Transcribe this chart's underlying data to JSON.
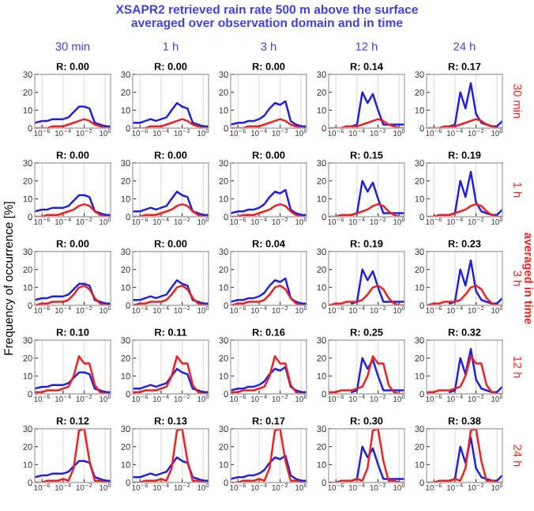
{
  "chart_data": [
    {
      "type": "line",
      "title": "R: 0.00",
      "annotations": [
        "XSAPR2 retrieved rain rate 500 m above the surface\naveraged over observation domain and in time",
        "30 min"
      ],
      "x": [
        2e-07,
        1e-06,
        3.2e-06,
        1e-05,
        3.2e-05,
        0.0001,
        0.00032,
        0.001,
        0.0032,
        0.01,
        0.032,
        0.1,
        0.32,
        1,
        3.2
      ],
      "xlim": [
        2e-07,
        3.2
      ],
      "xticks": [
        {
          "value": 1e-06,
          "label": "10$^{−6}$"
        },
        {
          "value": 0.0001,
          "label": "10$^{−4}$"
        },
        {
          "value": 0.01,
          "label": "10$^{−2}$"
        },
        {
          "value": 1,
          "label": "10$^{0}$"
        }
      ],
      "ylim": [
        0,
        30
      ],
      "yticks": [
        0,
        10,
        20,
        30
      ],
      "log": "x",
      "grid": "x",
      "series": [
        {
          "color": "#2020e0",
          "values": [
            3,
            4,
            4,
            5,
            5,
            5,
            6,
            9,
            12,
            12,
            11,
            3,
            2,
            1,
            1
          ]
        },
        {
          "color": "#ee2020",
          "values": [
            0,
            0,
            0,
            1,
            1,
            1,
            2,
            3,
            4,
            5,
            4,
            2,
            1,
            0,
            0
          ]
        }
      ]
    },
    {
      "type": "line",
      "title": "R: 0.00",
      "annotations": [
        "1 h"
      ],
      "x": [
        2e-07,
        1e-06,
        3.2e-06,
        1e-05,
        3.2e-05,
        0.0001,
        0.00032,
        0.001,
        0.0032,
        0.01,
        0.032,
        0.1,
        0.32,
        1,
        3.2
      ],
      "xlim": [
        2e-07,
        3.2
      ],
      "xticks": [
        {
          "value": 1e-06,
          "label": "10$^{−6}$"
        },
        {
          "value": 0.0001,
          "label": "10$^{−4}$"
        },
        {
          "value": 0.01,
          "label": "10$^{−2}$"
        },
        {
          "value": 1,
          "label": "10$^{0}$"
        }
      ],
      "ylim": [
        0,
        30
      ],
      "yticks": [
        0,
        10,
        20,
        30
      ],
      "log": "x",
      "grid": "x",
      "series": [
        {
          "color": "#2020e0",
          "values": [
            3,
            3,
            4,
            5,
            4,
            5,
            6,
            10,
            14,
            12,
            11,
            3,
            2,
            1,
            1
          ]
        },
        {
          "color": "#ee2020",
          "values": [
            0,
            0,
            0,
            1,
            1,
            1,
            2,
            3,
            4,
            5,
            4,
            2,
            1,
            0,
            0
          ]
        }
      ]
    },
    {
      "type": "line",
      "title": "R: 0.00",
      "annotations": [
        "3 h"
      ],
      "x": [
        2e-07,
        1e-06,
        3.2e-06,
        1e-05,
        3.2e-05,
        0.0001,
        0.00032,
        0.001,
        0.0032,
        0.01,
        0.032,
        0.1,
        0.32,
        1,
        3.2
      ],
      "xlim": [
        2e-07,
        3.2
      ],
      "xticks": [
        {
          "value": 1e-06,
          "label": "10$^{−6}$"
        },
        {
          "value": 0.0001,
          "label": "10$^{−4}$"
        },
        {
          "value": 0.01,
          "label": "10$^{−2}$"
        },
        {
          "value": 1,
          "label": "10$^{0}$"
        }
      ],
      "ylim": [
        0,
        30
      ],
      "yticks": [
        0,
        10,
        20,
        30
      ],
      "log": "x",
      "grid": "x",
      "series": [
        {
          "color": "#2020e0",
          "values": [
            2,
            3,
            3,
            4,
            4,
            5,
            7,
            11,
            14,
            13,
            15,
            4,
            2,
            1,
            1
          ]
        },
        {
          "color": "#ee2020",
          "values": [
            0,
            0,
            0,
            1,
            1,
            1,
            2,
            3,
            4,
            5,
            4,
            2,
            1,
            0,
            0
          ]
        }
      ]
    },
    {
      "type": "line",
      "title": "R: 0.14",
      "annotations": [
        "12 h"
      ],
      "x": [
        2e-07,
        1e-06,
        3.2e-06,
        1e-05,
        3.2e-05,
        0.0001,
        0.00032,
        0.001,
        0.0032,
        0.01,
        0.032,
        0.1,
        0.32,
        1,
        3.2
      ],
      "xlim": [
        2e-07,
        3.2
      ],
      "xticks": [
        {
          "value": 1e-06,
          "label": "10$^{−6}$"
        },
        {
          "value": 0.0001,
          "label": "10$^{−4}$"
        },
        {
          "value": 0.01,
          "label": "10$^{−2}$"
        },
        {
          "value": 1,
          "label": "10$^{0}$"
        }
      ],
      "ylim": [
        0,
        30
      ],
      "yticks": [
        0,
        10,
        20,
        30
      ],
      "log": "x",
      "grid": "x",
      "series": [
        {
          "color": "#2020e0",
          "values": [
            null,
            null,
            null,
            null,
            1,
            2,
            20,
            14,
            19,
            10,
            2,
            2,
            2,
            2,
            2
          ]
        },
        {
          "color": "#ee2020",
          "values": [
            0,
            0,
            0,
            1,
            1,
            1,
            2,
            3,
            4,
            5,
            4,
            2,
            1,
            0,
            0
          ]
        }
      ]
    },
    {
      "type": "line",
      "title": "R: 0.17",
      "annotations": [
        "24 h",
        "30 min"
      ],
      "x": [
        2e-07,
        1e-06,
        3.2e-06,
        1e-05,
        3.2e-05,
        0.0001,
        0.00032,
        0.001,
        0.0032,
        0.01,
        0.032,
        0.1,
        0.32,
        1,
        3.2
      ],
      "xlim": [
        2e-07,
        3.2
      ],
      "xticks": [
        {
          "value": 1e-06,
          "label": "10$^{−6}$"
        },
        {
          "value": 0.0001,
          "label": "10$^{−4}$"
        },
        {
          "value": 0.01,
          "label": "10$^{−2}$"
        },
        {
          "value": 1,
          "label": "10$^{0}$"
        }
      ],
      "ylim": [
        0,
        30
      ],
      "yticks": [
        0,
        10,
        20,
        30
      ],
      "log": "x",
      "grid": "x",
      "series": [
        {
          "color": "#2020e0",
          "values": [
            null,
            null,
            null,
            null,
            1,
            2,
            20,
            11,
            25,
            8,
            3,
            2,
            1,
            1,
            4
          ]
        },
        {
          "color": "#ee2020",
          "values": [
            0,
            0,
            0,
            1,
            1,
            1,
            2,
            3,
            4,
            5,
            4,
            2,
            1,
            0,
            0
          ]
        }
      ]
    },
    {
      "type": "line",
      "title": "R: 0.00",
      "x": [
        2e-07,
        1e-06,
        3.2e-06,
        1e-05,
        3.2e-05,
        0.0001,
        0.00032,
        0.001,
        0.0032,
        0.01,
        0.032,
        0.1,
        0.32,
        1,
        3.2
      ],
      "xlim": [
        2e-07,
        3.2
      ],
      "xticks": [
        {
          "value": 1e-06,
          "label": "10$^{−6}$"
        },
        {
          "value": 0.0001,
          "label": "10$^{−4}$"
        },
        {
          "value": 0.01,
          "label": "10$^{−2}$"
        },
        {
          "value": 1,
          "label": "10$^{0}$"
        }
      ],
      "ylim": [
        0,
        30
      ],
      "yticks": [
        0,
        10,
        20,
        30
      ],
      "log": "x",
      "grid": "x",
      "series": [
        {
          "color": "#2020e0",
          "values": [
            3,
            4,
            4,
            5,
            5,
            5,
            6,
            9,
            12,
            12,
            11,
            3,
            2,
            1,
            1
          ]
        },
        {
          "color": "#ee2020",
          "values": [
            0,
            0,
            1,
            1,
            1,
            2,
            3,
            4,
            6,
            7,
            6,
            3,
            1,
            0,
            0
          ]
        }
      ]
    },
    {
      "type": "line",
      "title": "R: 0.00",
      "x": [
        2e-07,
        1e-06,
        3.2e-06,
        1e-05,
        3.2e-05,
        0.0001,
        0.00032,
        0.001,
        0.0032,
        0.01,
        0.032,
        0.1,
        0.32,
        1,
        3.2
      ],
      "xlim": [
        2e-07,
        3.2
      ],
      "xticks": [
        {
          "value": 1e-06,
          "label": "10$^{−6}$"
        },
        {
          "value": 0.0001,
          "label": "10$^{−4}$"
        },
        {
          "value": 0.01,
          "label": "10$^{−2}$"
        },
        {
          "value": 1,
          "label": "10$^{0}$"
        }
      ],
      "ylim": [
        0,
        30
      ],
      "yticks": [
        0,
        10,
        20,
        30
      ],
      "log": "x",
      "grid": "x",
      "series": [
        {
          "color": "#2020e0",
          "values": [
            3,
            3,
            4,
            5,
            4,
            5,
            6,
            10,
            14,
            12,
            11,
            3,
            2,
            1,
            1
          ]
        },
        {
          "color": "#ee2020",
          "values": [
            0,
            0,
            1,
            1,
            1,
            2,
            3,
            4,
            6,
            7,
            6,
            3,
            1,
            0,
            0
          ]
        }
      ]
    },
    {
      "type": "line",
      "title": "R: 0.00",
      "x": [
        2e-07,
        1e-06,
        3.2e-06,
        1e-05,
        3.2e-05,
        0.0001,
        0.00032,
        0.001,
        0.0032,
        0.01,
        0.032,
        0.1,
        0.32,
        1,
        3.2
      ],
      "xlim": [
        2e-07,
        3.2
      ],
      "xticks": [
        {
          "value": 1e-06,
          "label": "10$^{−6}$"
        },
        {
          "value": 0.0001,
          "label": "10$^{−4}$"
        },
        {
          "value": 0.01,
          "label": "10$^{−2}$"
        },
        {
          "value": 1,
          "label": "10$^{0}$"
        }
      ],
      "ylim": [
        0,
        30
      ],
      "yticks": [
        0,
        10,
        20,
        30
      ],
      "log": "x",
      "grid": "x",
      "series": [
        {
          "color": "#2020e0",
          "values": [
            2,
            3,
            3,
            4,
            4,
            5,
            7,
            11,
            14,
            13,
            15,
            4,
            2,
            1,
            1
          ]
        },
        {
          "color": "#ee2020",
          "values": [
            0,
            0,
            1,
            1,
            1,
            2,
            3,
            4,
            6,
            7,
            6,
            3,
            1,
            0,
            0
          ]
        }
      ]
    },
    {
      "type": "line",
      "title": "R: 0.15",
      "x": [
        2e-07,
        1e-06,
        3.2e-06,
        1e-05,
        3.2e-05,
        0.0001,
        0.00032,
        0.001,
        0.0032,
        0.01,
        0.032,
        0.1,
        0.32,
        1,
        3.2
      ],
      "xlim": [
        2e-07,
        3.2
      ],
      "xticks": [
        {
          "value": 1e-06,
          "label": "10$^{−6}$"
        },
        {
          "value": 0.0001,
          "label": "10$^{−4}$"
        },
        {
          "value": 0.01,
          "label": "10$^{−2}$"
        },
        {
          "value": 1,
          "label": "10$^{0}$"
        }
      ],
      "ylim": [
        0,
        30
      ],
      "yticks": [
        0,
        10,
        20,
        30
      ],
      "log": "x",
      "grid": "x",
      "series": [
        {
          "color": "#2020e0",
          "values": [
            null,
            null,
            null,
            null,
            1,
            2,
            20,
            14,
            19,
            10,
            2,
            2,
            2,
            2,
            2
          ]
        },
        {
          "color": "#ee2020",
          "values": [
            0,
            0,
            1,
            1,
            1,
            2,
            3,
            4,
            6,
            7,
            6,
            3,
            1,
            0,
            0
          ]
        }
      ]
    },
    {
      "type": "line",
      "title": "R: 0.19",
      "annotations": [
        "1 h"
      ],
      "x": [
        2e-07,
        1e-06,
        3.2e-06,
        1e-05,
        3.2e-05,
        0.0001,
        0.00032,
        0.001,
        0.0032,
        0.01,
        0.032,
        0.1,
        0.32,
        1,
        3.2
      ],
      "xlim": [
        2e-07,
        3.2
      ],
      "xticks": [
        {
          "value": 1e-06,
          "label": "10$^{−6}$"
        },
        {
          "value": 0.0001,
          "label": "10$^{−4}$"
        },
        {
          "value": 0.01,
          "label": "10$^{−2}$"
        },
        {
          "value": 1,
          "label": "10$^{0}$"
        }
      ],
      "ylim": [
        0,
        30
      ],
      "yticks": [
        0,
        10,
        20,
        30
      ],
      "log": "x",
      "grid": "x",
      "series": [
        {
          "color": "#2020e0",
          "values": [
            null,
            null,
            null,
            null,
            1,
            2,
            20,
            11,
            25,
            8,
            3,
            2,
            1,
            1,
            4
          ]
        },
        {
          "color": "#ee2020",
          "values": [
            0,
            0,
            1,
            1,
            1,
            2,
            3,
            4,
            6,
            7,
            6,
            3,
            1,
            0,
            0
          ]
        }
      ]
    },
    {
      "type": "line",
      "title": "R: 0.00",
      "ylabel": "Frequency of occurrence [%]",
      "x": [
        2e-07,
        1e-06,
        3.2e-06,
        1e-05,
        3.2e-05,
        0.0001,
        0.00032,
        0.001,
        0.0032,
        0.01,
        0.032,
        0.1,
        0.32,
        1,
        3.2
      ],
      "xlim": [
        2e-07,
        3.2
      ],
      "xticks": [
        {
          "value": 1e-06,
          "label": "10$^{−6}$"
        },
        {
          "value": 0.0001,
          "label": "10$^{−4}$"
        },
        {
          "value": 0.01,
          "label": "10$^{−2}$"
        },
        {
          "value": 1,
          "label": "10$^{0}$"
        }
      ],
      "ylim": [
        0,
        30
      ],
      "yticks": [
        0,
        10,
        20,
        30
      ],
      "log": "x",
      "grid": "x",
      "series": [
        {
          "color": "#2020e0",
          "values": [
            3,
            4,
            4,
            5,
            5,
            5,
            6,
            9,
            12,
            12,
            11,
            3,
            2,
            1,
            1
          ]
        },
        {
          "color": "#ee2020",
          "values": [
            0,
            1,
            1,
            2,
            2,
            2,
            3,
            6,
            10,
            11,
            9,
            4,
            1,
            0,
            0
          ]
        }
      ]
    },
    {
      "type": "line",
      "title": "R: 0.00",
      "x": [
        2e-07,
        1e-06,
        3.2e-06,
        1e-05,
        3.2e-05,
        0.0001,
        0.00032,
        0.001,
        0.0032,
        0.01,
        0.032,
        0.1,
        0.32,
        1,
        3.2
      ],
      "xlim": [
        2e-07,
        3.2
      ],
      "xticks": [
        {
          "value": 1e-06,
          "label": "10$^{−6}$"
        },
        {
          "value": 0.0001,
          "label": "10$^{−4}$"
        },
        {
          "value": 0.01,
          "label": "10$^{−2}$"
        },
        {
          "value": 1,
          "label": "10$^{0}$"
        }
      ],
      "ylim": [
        0,
        30
      ],
      "yticks": [
        0,
        10,
        20,
        30
      ],
      "log": "x",
      "grid": "x",
      "series": [
        {
          "color": "#2020e0",
          "values": [
            3,
            3,
            4,
            5,
            4,
            5,
            6,
            10,
            14,
            12,
            11,
            3,
            2,
            1,
            1
          ]
        },
        {
          "color": "#ee2020",
          "values": [
            0,
            1,
            1,
            2,
            2,
            2,
            3,
            6,
            10,
            11,
            9,
            4,
            1,
            0,
            0
          ]
        }
      ]
    },
    {
      "type": "line",
      "title": "R: 0.04",
      "x": [
        2e-07,
        1e-06,
        3.2e-06,
        1e-05,
        3.2e-05,
        0.0001,
        0.00032,
        0.001,
        0.0032,
        0.01,
        0.032,
        0.1,
        0.32,
        1,
        3.2
      ],
      "xlim": [
        2e-07,
        3.2
      ],
      "xticks": [
        {
          "value": 1e-06,
          "label": "10$^{−6}$"
        },
        {
          "value": 0.0001,
          "label": "10$^{−4}$"
        },
        {
          "value": 0.01,
          "label": "10$^{−2}$"
        },
        {
          "value": 1,
          "label": "10$^{0}$"
        }
      ],
      "ylim": [
        0,
        30
      ],
      "yticks": [
        0,
        10,
        20,
        30
      ],
      "log": "x",
      "grid": "x",
      "series": [
        {
          "color": "#2020e0",
          "values": [
            2,
            3,
            3,
            4,
            4,
            5,
            7,
            11,
            14,
            13,
            15,
            4,
            2,
            1,
            1
          ]
        },
        {
          "color": "#ee2020",
          "values": [
            0,
            1,
            1,
            2,
            2,
            2,
            3,
            6,
            10,
            11,
            9,
            4,
            1,
            0,
            0
          ]
        }
      ]
    },
    {
      "type": "line",
      "title": "R: 0.19",
      "x": [
        2e-07,
        1e-06,
        3.2e-06,
        1e-05,
        3.2e-05,
        0.0001,
        0.00032,
        0.001,
        0.0032,
        0.01,
        0.032,
        0.1,
        0.32,
        1,
        3.2
      ],
      "xlim": [
        2e-07,
        3.2
      ],
      "xticks": [
        {
          "value": 1e-06,
          "label": "10$^{−6}$"
        },
        {
          "value": 0.0001,
          "label": "10$^{−4}$"
        },
        {
          "value": 0.01,
          "label": "10$^{−2}$"
        },
        {
          "value": 1,
          "label": "10$^{0}$"
        }
      ],
      "ylim": [
        0,
        30
      ],
      "yticks": [
        0,
        10,
        20,
        30
      ],
      "log": "x",
      "grid": "x",
      "series": [
        {
          "color": "#2020e0",
          "values": [
            null,
            null,
            null,
            null,
            1,
            2,
            20,
            14,
            19,
            10,
            2,
            2,
            2,
            2,
            2
          ]
        },
        {
          "color": "#ee2020",
          "values": [
            0,
            1,
            1,
            2,
            2,
            2,
            3,
            6,
            10,
            11,
            9,
            4,
            1,
            0,
            0
          ]
        }
      ]
    },
    {
      "type": "line",
      "title": "R: 0.23",
      "annotations": [
        "3 h",
        "averaged in time"
      ],
      "x": [
        2e-07,
        1e-06,
        3.2e-06,
        1e-05,
        3.2e-05,
        0.0001,
        0.00032,
        0.001,
        0.0032,
        0.01,
        0.032,
        0.1,
        0.32,
        1,
        3.2
      ],
      "xlim": [
        2e-07,
        3.2
      ],
      "xticks": [
        {
          "value": 1e-06,
          "label": "10$^{−6}$"
        },
        {
          "value": 0.0001,
          "label": "10$^{−4}$"
        },
        {
          "value": 0.01,
          "label": "10$^{−2}$"
        },
        {
          "value": 1,
          "label": "10$^{0}$"
        }
      ],
      "ylim": [
        0,
        30
      ],
      "yticks": [
        0,
        10,
        20,
        30
      ],
      "log": "x",
      "grid": "x",
      "series": [
        {
          "color": "#2020e0",
          "values": [
            null,
            null,
            null,
            null,
            1,
            2,
            20,
            11,
            25,
            8,
            3,
            2,
            1,
            1,
            4
          ]
        },
        {
          "color": "#ee2020",
          "values": [
            0,
            1,
            1,
            2,
            2,
            2,
            3,
            6,
            10,
            11,
            9,
            4,
            1,
            0,
            0
          ]
        }
      ]
    },
    {
      "type": "line",
      "title": "R: 0.10",
      "x": [
        2e-07,
        1e-06,
        3.2e-06,
        1e-05,
        3.2e-05,
        0.0001,
        0.00032,
        0.001,
        0.0032,
        0.01,
        0.032,
        0.1,
        0.32,
        1,
        3.2
      ],
      "xlim": [
        2e-07,
        3.2
      ],
      "xticks": [
        {
          "value": 1e-06,
          "label": "10$^{−6}$"
        },
        {
          "value": 0.0001,
          "label": "10$^{−4}$"
        },
        {
          "value": 0.01,
          "label": "10$^{−2}$"
        },
        {
          "value": 1,
          "label": "10$^{0}$"
        }
      ],
      "ylim": [
        0,
        30
      ],
      "yticks": [
        0,
        10,
        20,
        30
      ],
      "log": "x",
      "grid": "x",
      "series": [
        {
          "color": "#2020e0",
          "values": [
            3,
            4,
            4,
            5,
            5,
            5,
            6,
            9,
            12,
            12,
            11,
            3,
            2,
            1,
            1
          ]
        },
        {
          "color": "#ee2020",
          "values": [
            1,
            1,
            2,
            2,
            2,
            3,
            4,
            10,
            21,
            17,
            17,
            5,
            1,
            0,
            0
          ]
        }
      ]
    },
    {
      "type": "line",
      "title": "R: 0.11",
      "x": [
        2e-07,
        1e-06,
        3.2e-06,
        1e-05,
        3.2e-05,
        0.0001,
        0.00032,
        0.001,
        0.0032,
        0.01,
        0.032,
        0.1,
        0.32,
        1,
        3.2
      ],
      "xlim": [
        2e-07,
        3.2
      ],
      "xticks": [
        {
          "value": 1e-06,
          "label": "10$^{−6}$"
        },
        {
          "value": 0.0001,
          "label": "10$^{−4}$"
        },
        {
          "value": 0.01,
          "label": "10$^{−2}$"
        },
        {
          "value": 1,
          "label": "10$^{0}$"
        }
      ],
      "ylim": [
        0,
        30
      ],
      "yticks": [
        0,
        10,
        20,
        30
      ],
      "log": "x",
      "grid": "x",
      "series": [
        {
          "color": "#2020e0",
          "values": [
            3,
            3,
            4,
            5,
            4,
            5,
            6,
            10,
            14,
            12,
            11,
            3,
            2,
            1,
            1
          ]
        },
        {
          "color": "#ee2020",
          "values": [
            1,
            1,
            2,
            2,
            2,
            3,
            4,
            10,
            21,
            17,
            17,
            5,
            1,
            0,
            0
          ]
        }
      ]
    },
    {
      "type": "line",
      "title": "R: 0.16",
      "x": [
        2e-07,
        1e-06,
        3.2e-06,
        1e-05,
        3.2e-05,
        0.0001,
        0.00032,
        0.001,
        0.0032,
        0.01,
        0.032,
        0.1,
        0.32,
        1,
        3.2
      ],
      "xlim": [
        2e-07,
        3.2
      ],
      "xticks": [
        {
          "value": 1e-06,
          "label": "10$^{−6}$"
        },
        {
          "value": 0.0001,
          "label": "10$^{−4}$"
        },
        {
          "value": 0.01,
          "label": "10$^{−2}$"
        },
        {
          "value": 1,
          "label": "10$^{0}$"
        }
      ],
      "ylim": [
        0,
        30
      ],
      "yticks": [
        0,
        10,
        20,
        30
      ],
      "log": "x",
      "grid": "x",
      "series": [
        {
          "color": "#2020e0",
          "values": [
            2,
            3,
            3,
            4,
            4,
            5,
            7,
            11,
            14,
            13,
            15,
            4,
            2,
            1,
            1
          ]
        },
        {
          "color": "#ee2020",
          "values": [
            1,
            1,
            2,
            2,
            2,
            3,
            4,
            10,
            21,
            17,
            17,
            5,
            1,
            0,
            0
          ]
        }
      ]
    },
    {
      "type": "line",
      "title": "R: 0.25",
      "x": [
        2e-07,
        1e-06,
        3.2e-06,
        1e-05,
        3.2e-05,
        0.0001,
        0.00032,
        0.001,
        0.0032,
        0.01,
        0.032,
        0.1,
        0.32,
        1,
        3.2
      ],
      "xlim": [
        2e-07,
        3.2
      ],
      "xticks": [
        {
          "value": 1e-06,
          "label": "10$^{−6}$"
        },
        {
          "value": 0.0001,
          "label": "10$^{−4}$"
        },
        {
          "value": 0.01,
          "label": "10$^{−2}$"
        },
        {
          "value": 1,
          "label": "10$^{0}$"
        }
      ],
      "ylim": [
        0,
        30
      ],
      "yticks": [
        0,
        10,
        20,
        30
      ],
      "log": "x",
      "grid": "x",
      "series": [
        {
          "color": "#2020e0",
          "values": [
            null,
            null,
            null,
            null,
            1,
            2,
            20,
            14,
            19,
            10,
            2,
            2,
            2,
            2,
            2
          ]
        },
        {
          "color": "#ee2020",
          "values": [
            1,
            1,
            2,
            2,
            2,
            3,
            4,
            10,
            21,
            17,
            17,
            5,
            1,
            0,
            0
          ]
        }
      ]
    },
    {
      "type": "line",
      "title": "R: 0.32",
      "annotations": [
        "12 h"
      ],
      "x": [
        2e-07,
        1e-06,
        3.2e-06,
        1e-05,
        3.2e-05,
        0.0001,
        0.00032,
        0.001,
        0.0032,
        0.01,
        0.032,
        0.1,
        0.32,
        1,
        3.2
      ],
      "xlim": [
        2e-07,
        3.2
      ],
      "xticks": [
        {
          "value": 1e-06,
          "label": "10$^{−6}$"
        },
        {
          "value": 0.0001,
          "label": "10$^{−4}$"
        },
        {
          "value": 0.01,
          "label": "10$^{−2}$"
        },
        {
          "value": 1,
          "label": "10$^{0}$"
        }
      ],
      "ylim": [
        0,
        30
      ],
      "yticks": [
        0,
        10,
        20,
        30
      ],
      "log": "x",
      "grid": "x",
      "series": [
        {
          "color": "#2020e0",
          "values": [
            null,
            null,
            null,
            null,
            1,
            2,
            20,
            11,
            25,
            8,
            3,
            2,
            1,
            1,
            4
          ]
        },
        {
          "color": "#ee2020",
          "values": [
            1,
            1,
            2,
            2,
            2,
            3,
            4,
            10,
            21,
            17,
            17,
            5,
            1,
            0,
            0
          ]
        }
      ]
    },
    {
      "type": "line",
      "title": "R: 0.12",
      "x": [
        2e-07,
        1e-06,
        3.2e-06,
        1e-05,
        3.2e-05,
        0.0001,
        0.00032,
        0.001,
        0.0032,
        0.01,
        0.032,
        0.1,
        0.32,
        1,
        3.2
      ],
      "xlim": [
        2e-07,
        3.2
      ],
      "xticks": [
        {
          "value": 1e-06,
          "label": "10$^{−6}$"
        },
        {
          "value": 0.0001,
          "label": "10$^{−4}$"
        },
        {
          "value": 0.01,
          "label": "10$^{−2}$"
        },
        {
          "value": 1,
          "label": "10$^{0}$"
        }
      ],
      "ylim": [
        0,
        30
      ],
      "yticks": [
        0,
        10,
        20,
        30
      ],
      "log": "x",
      "grid": "x",
      "series": [
        {
          "color": "#2020e0",
          "values": [
            3,
            4,
            4,
            5,
            5,
            5,
            6,
            9,
            12,
            12,
            11,
            3,
            2,
            1,
            1
          ]
        },
        {
          "color": "#ee2020",
          "values": [
            0,
            0,
            1,
            1,
            1,
            2,
            1,
            8,
            29,
            30,
            12,
            1,
            1,
            0,
            0
          ]
        }
      ]
    },
    {
      "type": "line",
      "title": "R: 0.13",
      "x": [
        2e-07,
        1e-06,
        3.2e-06,
        1e-05,
        3.2e-05,
        0.0001,
        0.00032,
        0.001,
        0.0032,
        0.01,
        0.032,
        0.1,
        0.32,
        1,
        3.2
      ],
      "xlim": [
        2e-07,
        3.2
      ],
      "xticks": [
        {
          "value": 1e-06,
          "label": "10$^{−6}$"
        },
        {
          "value": 0.0001,
          "label": "10$^{−4}$"
        },
        {
          "value": 0.01,
          "label": "10$^{−2}$"
        },
        {
          "value": 1,
          "label": "10$^{0}$"
        }
      ],
      "ylim": [
        0,
        30
      ],
      "yticks": [
        0,
        10,
        20,
        30
      ],
      "log": "x",
      "grid": "x",
      "series": [
        {
          "color": "#2020e0",
          "values": [
            3,
            3,
            4,
            5,
            4,
            5,
            6,
            10,
            14,
            12,
            11,
            3,
            2,
            1,
            1
          ]
        },
        {
          "color": "#ee2020",
          "values": [
            0,
            0,
            1,
            1,
            1,
            2,
            1,
            8,
            29,
            30,
            12,
            1,
            1,
            0,
            0
          ]
        }
      ]
    },
    {
      "type": "line",
      "title": "R: 0.17",
      "x": [
        2e-07,
        1e-06,
        3.2e-06,
        1e-05,
        3.2e-05,
        0.0001,
        0.00032,
        0.001,
        0.0032,
        0.01,
        0.032,
        0.1,
        0.32,
        1,
        3.2
      ],
      "xlim": [
        2e-07,
        3.2
      ],
      "xticks": [
        {
          "value": 1e-06,
          "label": "10$^{−6}$"
        },
        {
          "value": 0.0001,
          "label": "10$^{−4}$"
        },
        {
          "value": 0.01,
          "label": "10$^{−2}$"
        },
        {
          "value": 1,
          "label": "10$^{0}$"
        }
      ],
      "ylim": [
        0,
        30
      ],
      "yticks": [
        0,
        10,
        20,
        30
      ],
      "log": "x",
      "grid": "x",
      "series": [
        {
          "color": "#2020e0",
          "values": [
            2,
            3,
            3,
            4,
            4,
            5,
            7,
            11,
            14,
            13,
            15,
            4,
            2,
            1,
            1
          ]
        },
        {
          "color": "#ee2020",
          "values": [
            0,
            0,
            1,
            1,
            1,
            2,
            1,
            8,
            29,
            30,
            12,
            1,
            1,
            0,
            0
          ]
        }
      ]
    },
    {
      "type": "line",
      "title": "R: 0.30",
      "x": [
        2e-07,
        1e-06,
        3.2e-06,
        1e-05,
        3.2e-05,
        0.0001,
        0.00032,
        0.001,
        0.0032,
        0.01,
        0.032,
        0.1,
        0.32,
        1,
        3.2
      ],
      "xlim": [
        2e-07,
        3.2
      ],
      "xticks": [
        {
          "value": 1e-06,
          "label": "10$^{−6}$"
        },
        {
          "value": 0.0001,
          "label": "10$^{−4}$"
        },
        {
          "value": 0.01,
          "label": "10$^{−2}$"
        },
        {
          "value": 1,
          "label": "10$^{0}$"
        }
      ],
      "ylim": [
        0,
        30
      ],
      "yticks": [
        0,
        10,
        20,
        30
      ],
      "log": "x",
      "grid": "x",
      "series": [
        {
          "color": "#2020e0",
          "values": [
            null,
            null,
            null,
            null,
            1,
            2,
            20,
            14,
            19,
            10,
            2,
            2,
            2,
            2,
            2
          ]
        },
        {
          "color": "#ee2020",
          "values": [
            0,
            0,
            1,
            1,
            1,
            2,
            1,
            8,
            29,
            30,
            12,
            1,
            1,
            0,
            0
          ]
        }
      ]
    },
    {
      "type": "line",
      "title": "R: 0.38",
      "annotations": [
        "24 h"
      ],
      "x": [
        2e-07,
        1e-06,
        3.2e-06,
        1e-05,
        3.2e-05,
        0.0001,
        0.00032,
        0.001,
        0.0032,
        0.01,
        0.032,
        0.1,
        0.32,
        1,
        3.2
      ],
      "xlim": [
        2e-07,
        3.2
      ],
      "xticks": [
        {
          "value": 1e-06,
          "label": "10$^{−6}$"
        },
        {
          "value": 0.0001,
          "label": "10$^{−4}$"
        },
        {
          "value": 0.01,
          "label": "10$^{−2}$"
        },
        {
          "value": 1,
          "label": "10$^{0}$"
        }
      ],
      "ylim": [
        0,
        30
      ],
      "yticks": [
        0,
        10,
        20,
        30
      ],
      "log": "x",
      "grid": "x",
      "series": [
        {
          "color": "#2020e0",
          "values": [
            null,
            null,
            null,
            null,
            1,
            2,
            20,
            11,
            25,
            8,
            3,
            2,
            1,
            1,
            4
          ]
        },
        {
          "color": "#ee2020",
          "values": [
            0,
            0,
            1,
            1,
            1,
            2,
            1,
            8,
            29,
            30,
            12,
            1,
            1,
            0,
            0
          ]
        }
      ]
    }
  ]
}
